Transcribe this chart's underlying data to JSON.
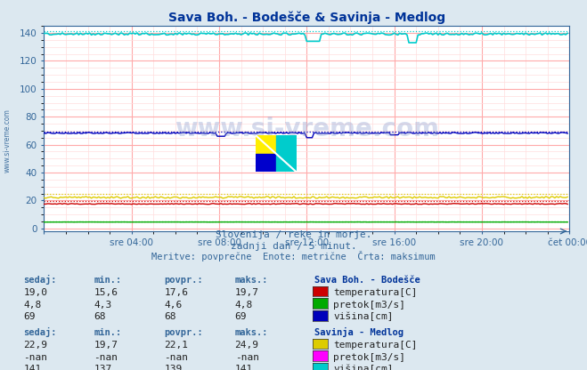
{
  "title": "Sava Boh. - Bodešče & Savinja - Medlog",
  "bg_color": "#dce8f0",
  "plot_bg_color": "#ffffff",
  "xlabel_ticks": [
    "sre 04:00",
    "sre 08:00",
    "sre 12:00",
    "sre 16:00",
    "sre 20:00",
    "čet 00:00"
  ],
  "ylabel_ticks": [
    0,
    20,
    40,
    60,
    80,
    100,
    120,
    140
  ],
  "ylim": [
    -2,
    145
  ],
  "xlim": [
    0,
    288
  ],
  "subtitle1": "Slovenija / reke in morje.",
  "subtitle2": "zadnji dan / 5 minut.",
  "subtitle3": "Meritve: povprečne  Enote: metrične  Črta: maksimum",
  "watermark": "www.si-vreme.com",
  "grid_major_color": "#ffaaaa",
  "grid_minor_color": "#ffdddd",
  "n_points": 288,
  "sava_temp_avg": 17.6,
  "sava_temp_max": 19.7,
  "sava_temp_min": 15.6,
  "sava_pretok_avg": 4.6,
  "sava_pretok_max": 4.8,
  "sava_pretok_min": 4.3,
  "sava_visina_avg": 68,
  "sava_visina_max": 69,
  "sava_visina_min": 68,
  "savinja_temp_avg": 22.1,
  "savinja_temp_max": 24.9,
  "savinja_temp_min": 19.7,
  "savinja_visina_avg": 139,
  "savinja_visina_max": 141,
  "savinja_visina_min": 137,
  "color_sava_temp": "#cc0000",
  "color_sava_pretok": "#00aa00",
  "color_sava_visina": "#0000bb",
  "color_savinja_temp": "#ddcc00",
  "color_savinja_pretok": "#ff00ff",
  "color_savinja_visina": "#00cccc",
  "text_color": "#336699",
  "title_color": "#003399",
  "label_color": "#555555",
  "legend_sava_label": "Sava Boh. - Bodešče",
  "legend_savinja_label": "Savinja - Medlog",
  "table_headers": [
    "sedaj:",
    "min.:",
    "povpr.:",
    "maks.:"
  ],
  "sava_rows": [
    [
      "19,0",
      "15,6",
      "17,6",
      "19,7",
      "temperatura[C]"
    ],
    [
      "4,8",
      "4,3",
      "4,6",
      "4,8",
      "pretok[m3/s]"
    ],
    [
      "69",
      "68",
      "68",
      "69",
      "višina[cm]"
    ]
  ],
  "savinja_rows": [
    [
      "22,9",
      "19,7",
      "22,1",
      "24,9",
      "temperatura[C]"
    ],
    [
      "-nan",
      "-nan",
      "-nan",
      "-nan",
      "pretok[m3/s]"
    ],
    [
      "141",
      "137",
      "139",
      "141",
      "višina[cm]"
    ]
  ]
}
